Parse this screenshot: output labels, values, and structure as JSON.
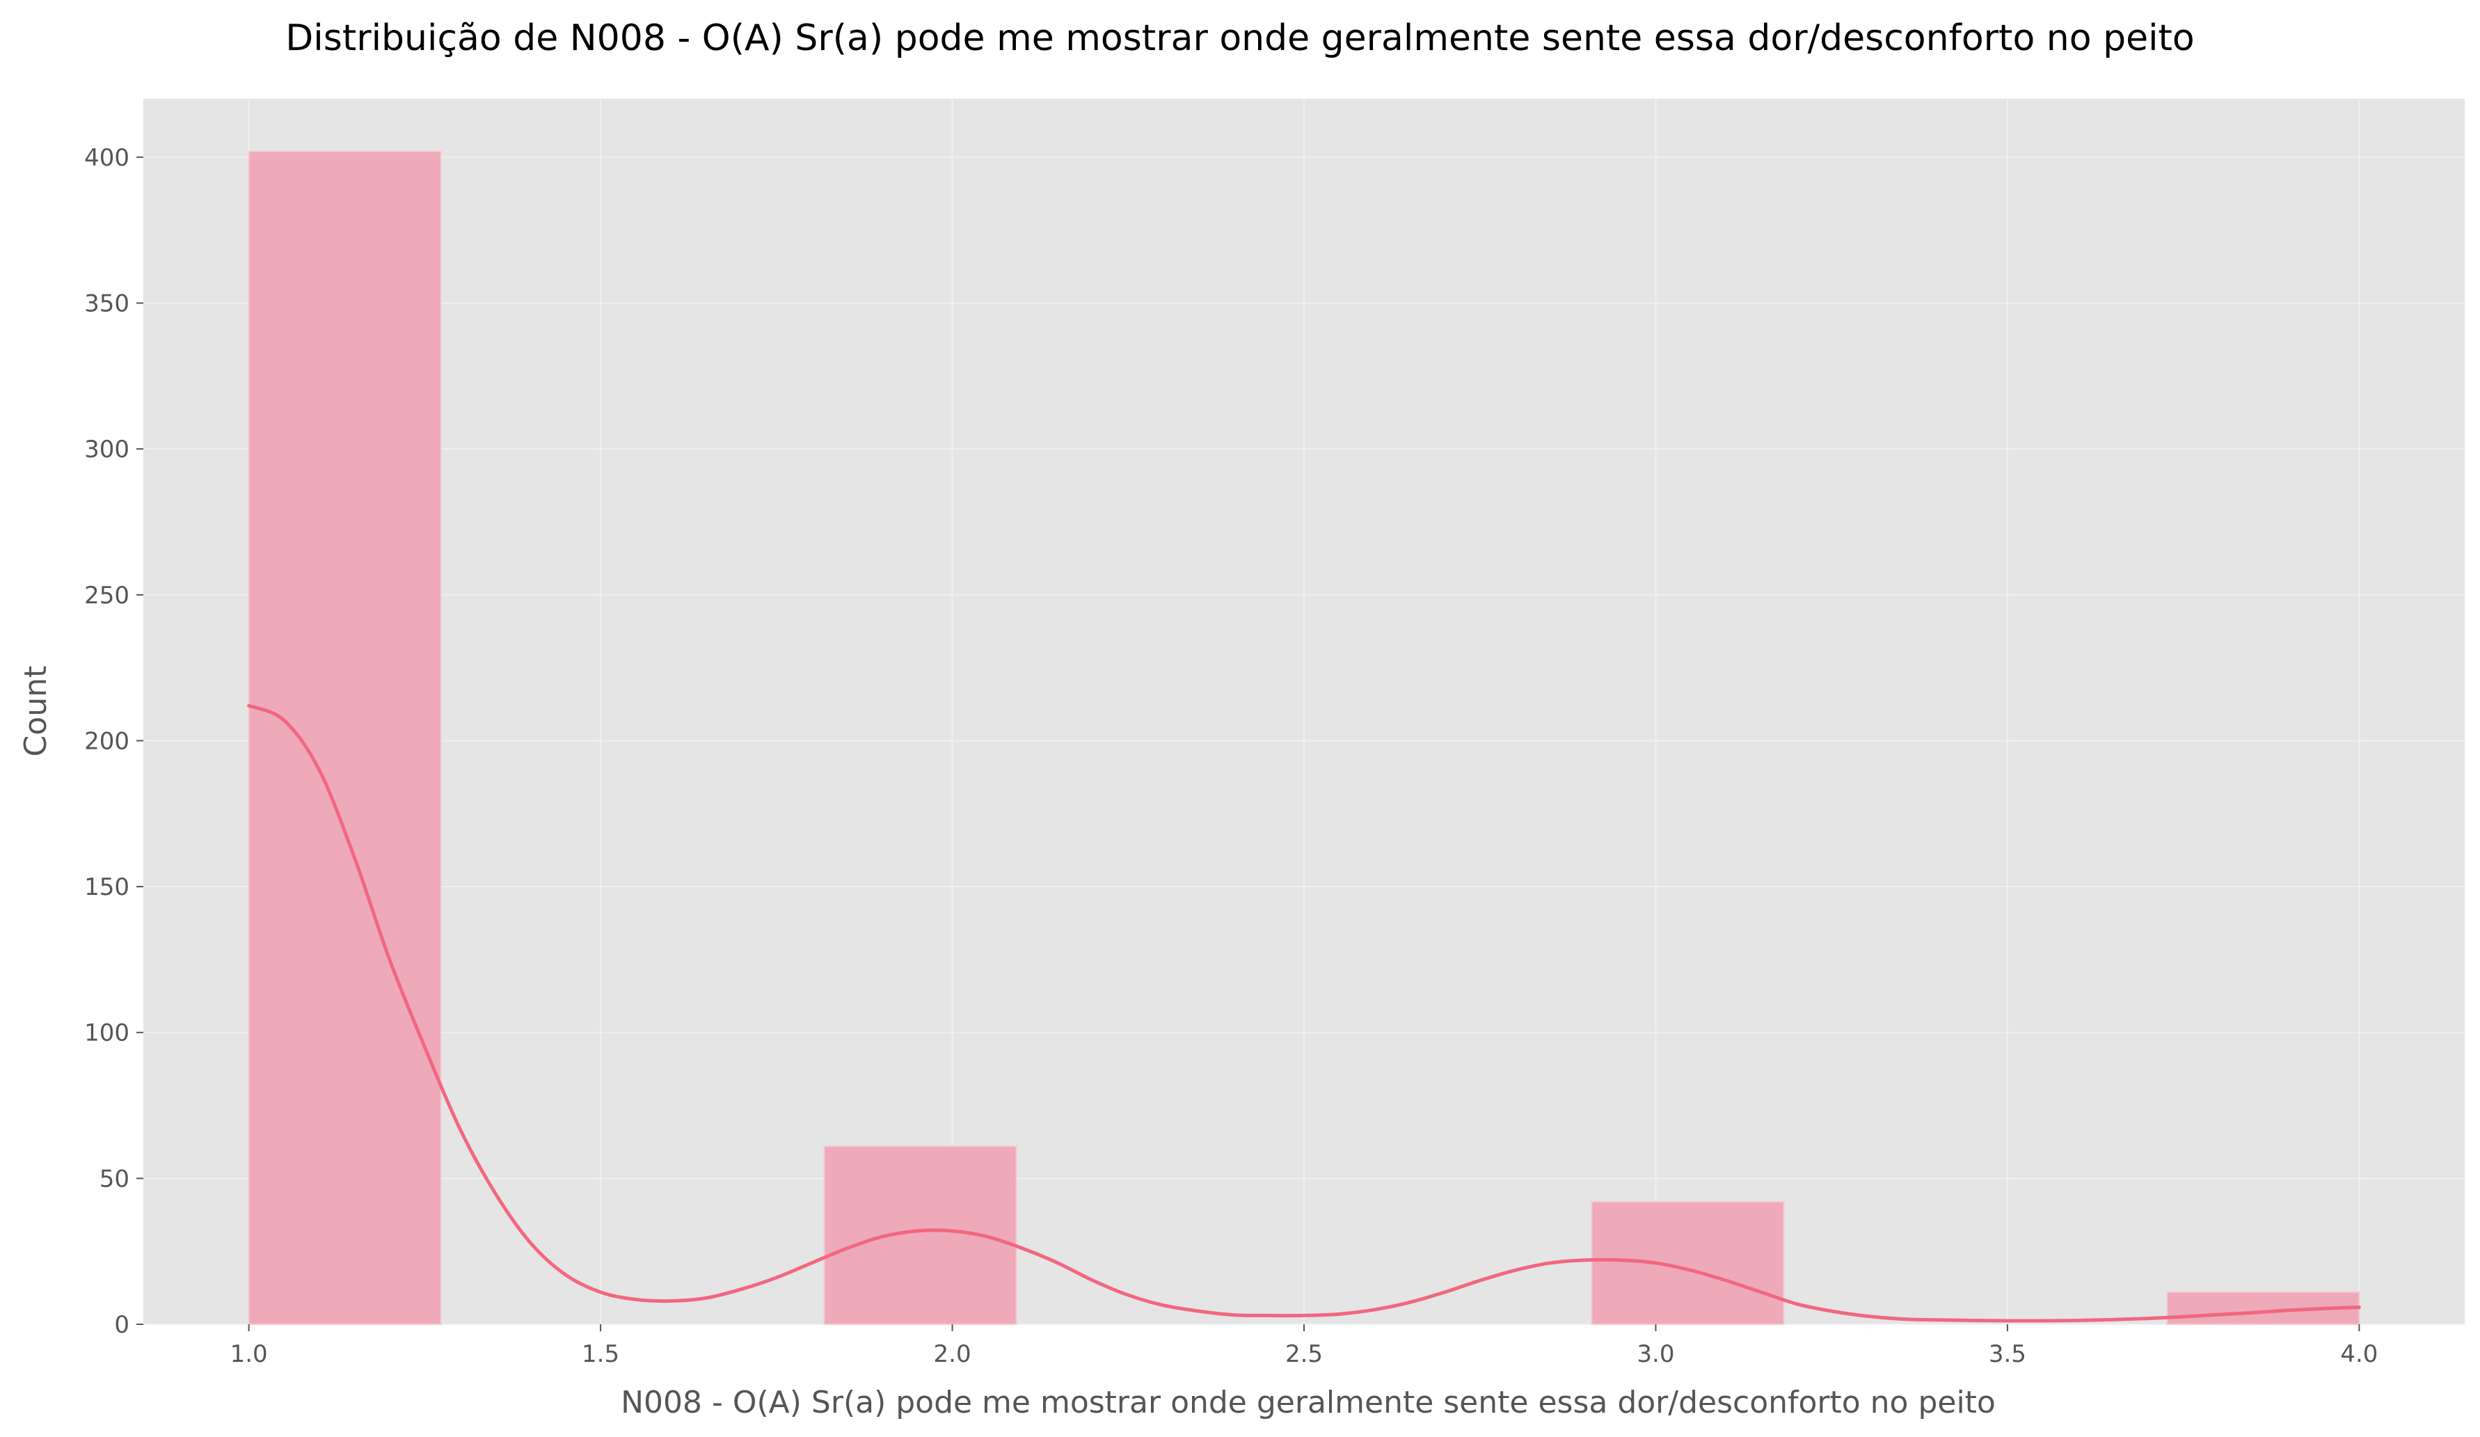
{
  "chart_data": {
    "type": "bar",
    "title": "Distribuição de N008 - O(A) Sr(a) pode me mostrar onde geralmente sente essa dor/desconforto no peito",
    "xlabel": "N008 - O(A) Sr(a) pode me mostrar onde geralmente sente essa dor/desconforto no peito",
    "ylabel": "Count",
    "xlim": [
      0.85,
      4.15
    ],
    "ylim": [
      0,
      420
    ],
    "x_ticks": [
      "1.0",
      "1.5",
      "2.0",
      "2.5",
      "3.0",
      "3.5",
      "4.0"
    ],
    "y_ticks": [
      "0",
      "50",
      "100",
      "150",
      "200",
      "250",
      "300",
      "350",
      "400"
    ],
    "grid": true,
    "bins": [
      {
        "x0": 1.0,
        "x1": 1.273,
        "count": 402
      },
      {
        "x0": 1.818,
        "x1": 2.091,
        "count": 61
      },
      {
        "x0": 2.909,
        "x1": 3.182,
        "count": 42
      },
      {
        "x0": 3.727,
        "x1": 4.0,
        "count": 11
      }
    ],
    "kde": {
      "x": [
        1.0,
        1.05,
        1.1,
        1.15,
        1.2,
        1.25,
        1.3,
        1.35,
        1.4,
        1.45,
        1.5,
        1.55,
        1.6,
        1.65,
        1.7,
        1.75,
        1.8,
        1.85,
        1.9,
        1.95,
        2.0,
        2.05,
        2.1,
        2.15,
        2.2,
        2.25,
        2.3,
        2.35,
        2.4,
        2.45,
        2.5,
        2.55,
        2.6,
        2.65,
        2.7,
        2.75,
        2.8,
        2.85,
        2.9,
        2.95,
        3.0,
        3.05,
        3.1,
        3.15,
        3.2,
        3.25,
        3.3,
        3.35,
        3.4,
        3.45,
        3.5,
        3.55,
        3.6,
        3.65,
        3.7,
        3.75,
        3.8,
        3.85,
        3.9,
        3.95,
        4.0
      ],
      "y": [
        212,
        207,
        190,
        160,
        125,
        95,
        67,
        45,
        28,
        17,
        11,
        8.5,
        8,
        9,
        12,
        16,
        21,
        26,
        30,
        32,
        32,
        30,
        26,
        21,
        15,
        10,
        6.5,
        4.5,
        3.2,
        3,
        3,
        3.5,
        5,
        7.5,
        11,
        15,
        18.5,
        21,
        22,
        22,
        21,
        18.5,
        15,
        11,
        7,
        4.5,
        2.8,
        1.8,
        1.5,
        1.3,
        1.2,
        1.2,
        1.3,
        1.6,
        2,
        2.6,
        3.3,
        4,
        4.8,
        5.4,
        5.8
      ]
    },
    "colors": {
      "bar_fill": "#eeaab8",
      "bar_edge": "#f4c9d2",
      "kde_line": "#f2677f",
      "plot_bg": "#e5e5e5",
      "grid": "#f0f0f0"
    }
  }
}
